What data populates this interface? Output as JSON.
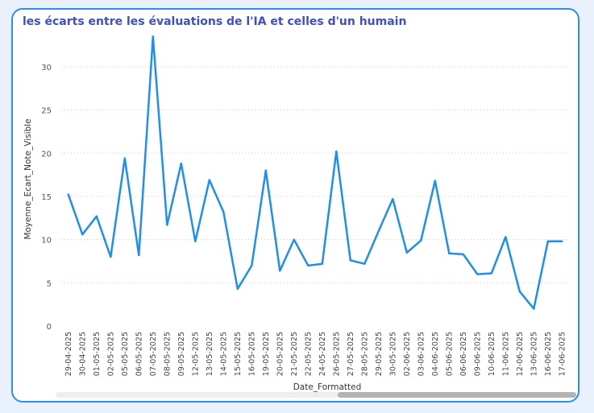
{
  "colors": {
    "line": "#1f8ef1",
    "title": "#3f4fc7",
    "border": "#2e8df0",
    "background": "#e9f2fc"
  },
  "chart_data": {
    "type": "line",
    "title": "les écarts entre les évaluations de l'IA et celles d'un humain",
    "xlabel": "Date_Formatted",
    "ylabel": "Moyenne_Ecart_Note_Visible",
    "ylim": [
      0,
      34
    ],
    "yticks": [
      0,
      5,
      10,
      15,
      20,
      25,
      30
    ],
    "grid": true,
    "categories": [
      "29-04-2025",
      "30-04-2025",
      "01-05-2025",
      "02-05-2025",
      "05-05-2025",
      "06-05-2025",
      "07-05-2025",
      "08-05-2025",
      "09-05-2025",
      "12-05-2025",
      "13-05-2025",
      "14-05-2025",
      "15-05-2025",
      "16-05-2025",
      "19-05-2025",
      "20-05-2025",
      "21-05-2025",
      "22-05-2025",
      "24-05-2025",
      "26-05-2025",
      "27-05-2025",
      "28-05-2025",
      "29-05-2025",
      "30-05-2025",
      "02-06-2025",
      "03-06-2025",
      "04-06-2025",
      "05-06-2025",
      "06-06-2025",
      "09-06-2025",
      "10-06-2025",
      "11-06-2025",
      "12-06-2025",
      "13-06-2025",
      "16-06-2025",
      "17-06-2025"
    ],
    "series": [
      {
        "values": [
          15.2,
          10.6,
          12.7,
          8.0,
          19.4,
          8.2,
          33.5,
          11.7,
          18.8,
          9.8,
          16.9,
          13.2,
          4.3,
          7.0,
          18.0,
          6.4,
          10.0,
          7.0,
          7.2,
          20.2,
          7.6,
          7.2,
          11.0,
          14.7,
          8.5,
          9.9,
          16.8,
          8.4,
          8.3,
          6.0,
          6.1,
          10.3,
          4.0,
          2.0,
          9.8,
          9.8
        ]
      }
    ]
  }
}
